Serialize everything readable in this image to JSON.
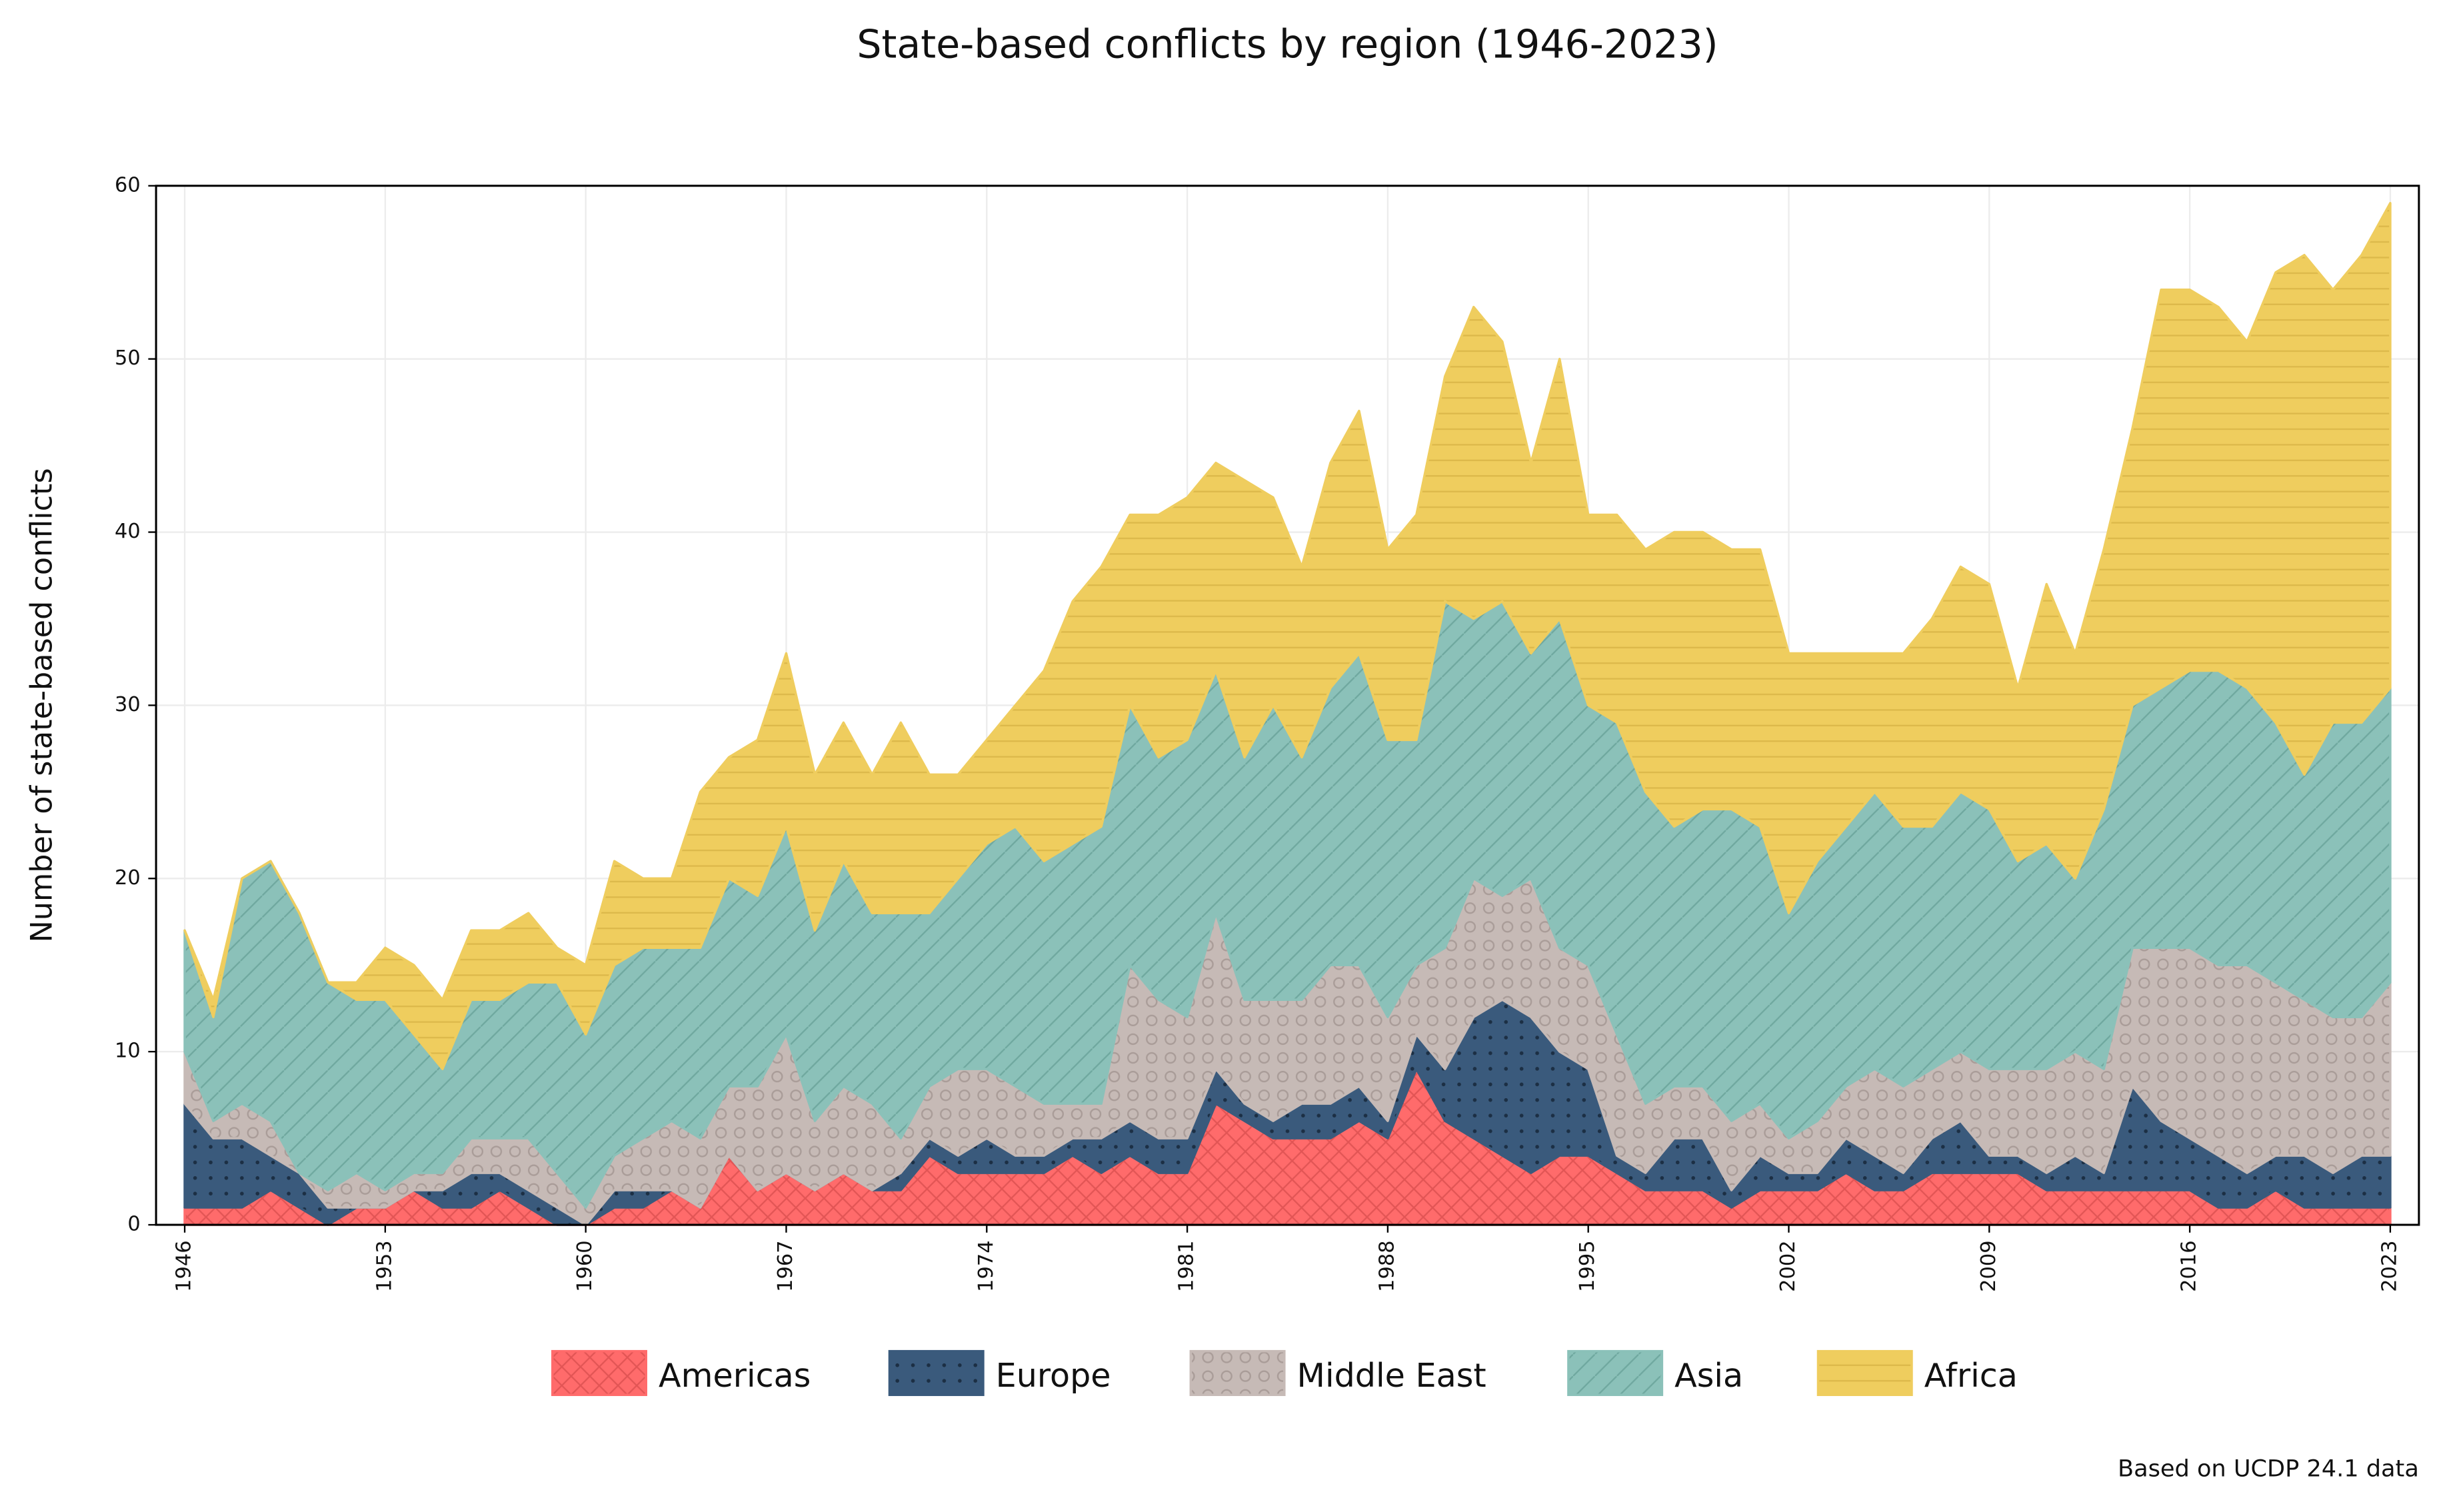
{
  "chart_data": {
    "type": "area",
    "stacked": true,
    "title": "State-based conflicts by region (1946-2023)",
    "y_label": "Number of state-based conflicts",
    "note": "Based on UCDP 24.1 data",
    "x": [
      1946,
      1947,
      1948,
      1949,
      1950,
      1951,
      1952,
      1953,
      1954,
      1955,
      1956,
      1957,
      1958,
      1959,
      1960,
      1961,
      1962,
      1963,
      1964,
      1965,
      1966,
      1967,
      1968,
      1969,
      1970,
      1971,
      1972,
      1973,
      1974,
      1975,
      1976,
      1977,
      1978,
      1979,
      1980,
      1981,
      1982,
      1983,
      1984,
      1985,
      1986,
      1987,
      1988,
      1989,
      1990,
      1991,
      1992,
      1993,
      1994,
      1995,
      1996,
      1997,
      1998,
      1999,
      2000,
      2001,
      2002,
      2003,
      2004,
      2005,
      2006,
      2007,
      2008,
      2009,
      2010,
      2011,
      2012,
      2013,
      2014,
      2015,
      2016,
      2017,
      2018,
      2019,
      2020,
      2021,
      2022,
      2023
    ],
    "series": [
      {
        "name": "Americas",
        "color": "#ff6b6b",
        "values": [
          1,
          1,
          1,
          2,
          1,
          0,
          1,
          1,
          2,
          1,
          1,
          2,
          1,
          0,
          0,
          1,
          1,
          2,
          1,
          4,
          2,
          3,
          2,
          3,
          2,
          2,
          4,
          3,
          3,
          3,
          3,
          4,
          3,
          4,
          3,
          3,
          7,
          6,
          5,
          5,
          5,
          6,
          5,
          9,
          6,
          5,
          4,
          3,
          4,
          4,
          3,
          2,
          2,
          2,
          1,
          2,
          2,
          2,
          3,
          2,
          2,
          3,
          3,
          3,
          3,
          2,
          2,
          2,
          2,
          2,
          2,
          1,
          1,
          2,
          1,
          1,
          1,
          1
        ]
      },
      {
        "name": "Europe",
        "color": "#3a5a7c",
        "values": [
          6,
          4,
          4,
          2,
          2,
          1,
          0,
          0,
          0,
          1,
          2,
          1,
          1,
          1,
          0,
          1,
          1,
          0,
          0,
          0,
          0,
          0,
          0,
          0,
          0,
          1,
          1,
          1,
          2,
          1,
          1,
          1,
          2,
          2,
          2,
          2,
          2,
          1,
          1,
          2,
          2,
          2,
          1,
          2,
          3,
          7,
          9,
          9,
          6,
          5,
          1,
          1,
          3,
          3,
          1,
          2,
          1,
          1,
          2,
          2,
          1,
          2,
          3,
          1,
          1,
          1,
          2,
          1,
          6,
          4,
          3,
          3,
          2,
          2,
          3,
          2,
          3,
          3
        ]
      },
      {
        "name": "Middle East",
        "color": "#c6bab6",
        "values": [
          3,
          1,
          2,
          2,
          0,
          1,
          2,
          1,
          1,
          1,
          2,
          2,
          3,
          2,
          1,
          2,
          3,
          4,
          4,
          4,
          6,
          8,
          4,
          5,
          5,
          2,
          3,
          5,
          4,
          4,
          3,
          2,
          2,
          9,
          8,
          7,
          9,
          6,
          7,
          6,
          8,
          7,
          6,
          4,
          7,
          8,
          6,
          8,
          6,
          6,
          7,
          4,
          3,
          3,
          4,
          3,
          2,
          3,
          3,
          5,
          5,
          4,
          4,
          5,
          5,
          6,
          6,
          6,
          8,
          10,
          11,
          11,
          12,
          10,
          9,
          9,
          8,
          10
        ]
      },
      {
        "name": "Asia",
        "color": "#8bc1b9",
        "values": [
          7,
          6,
          13,
          15,
          15,
          12,
          10,
          11,
          8,
          6,
          8,
          8,
          9,
          11,
          10,
          11,
          11,
          10,
          11,
          12,
          11,
          12,
          11,
          13,
          11,
          13,
          10,
          11,
          13,
          15,
          14,
          15,
          16,
          15,
          14,
          16,
          14,
          14,
          17,
          14,
          16,
          18,
          16,
          13,
          20,
          15,
          17,
          13,
          19,
          15,
          18,
          18,
          15,
          16,
          18,
          16,
          13,
          15,
          15,
          16,
          15,
          14,
          15,
          15,
          12,
          13,
          10,
          15,
          14,
          15,
          16,
          17,
          16,
          15,
          13,
          17,
          17,
          17
        ]
      },
      {
        "name": "Africa",
        "color": "#efcd5e",
        "values": [
          0,
          1,
          0,
          0,
          0,
          0,
          1,
          3,
          4,
          4,
          4,
          4,
          4,
          2,
          4,
          6,
          4,
          4,
          9,
          7,
          9,
          10,
          9,
          8,
          8,
          11,
          8,
          6,
          6,
          7,
          11,
          14,
          15,
          11,
          14,
          14,
          12,
          16,
          12,
          11,
          13,
          14,
          11,
          13,
          13,
          18,
          15,
          11,
          15,
          11,
          12,
          14,
          17,
          16,
          15,
          16,
          15,
          12,
          10,
          8,
          10,
          12,
          13,
          13,
          10,
          15,
          13,
          15,
          16,
          23,
          22,
          21,
          20,
          26,
          30,
          25,
          27,
          28
        ]
      }
    ],
    "xlim": [
      1945,
      2024
    ],
    "xticks": [
      1946,
      1953,
      1960,
      1967,
      1974,
      1981,
      1988,
      1995,
      2002,
      2009,
      2016,
      2023
    ],
    "ylim": [
      0,
      60
    ],
    "yticks": [
      0,
      10,
      20,
      30,
      40,
      50,
      60
    ],
    "grid": true,
    "legend": "bottom"
  }
}
